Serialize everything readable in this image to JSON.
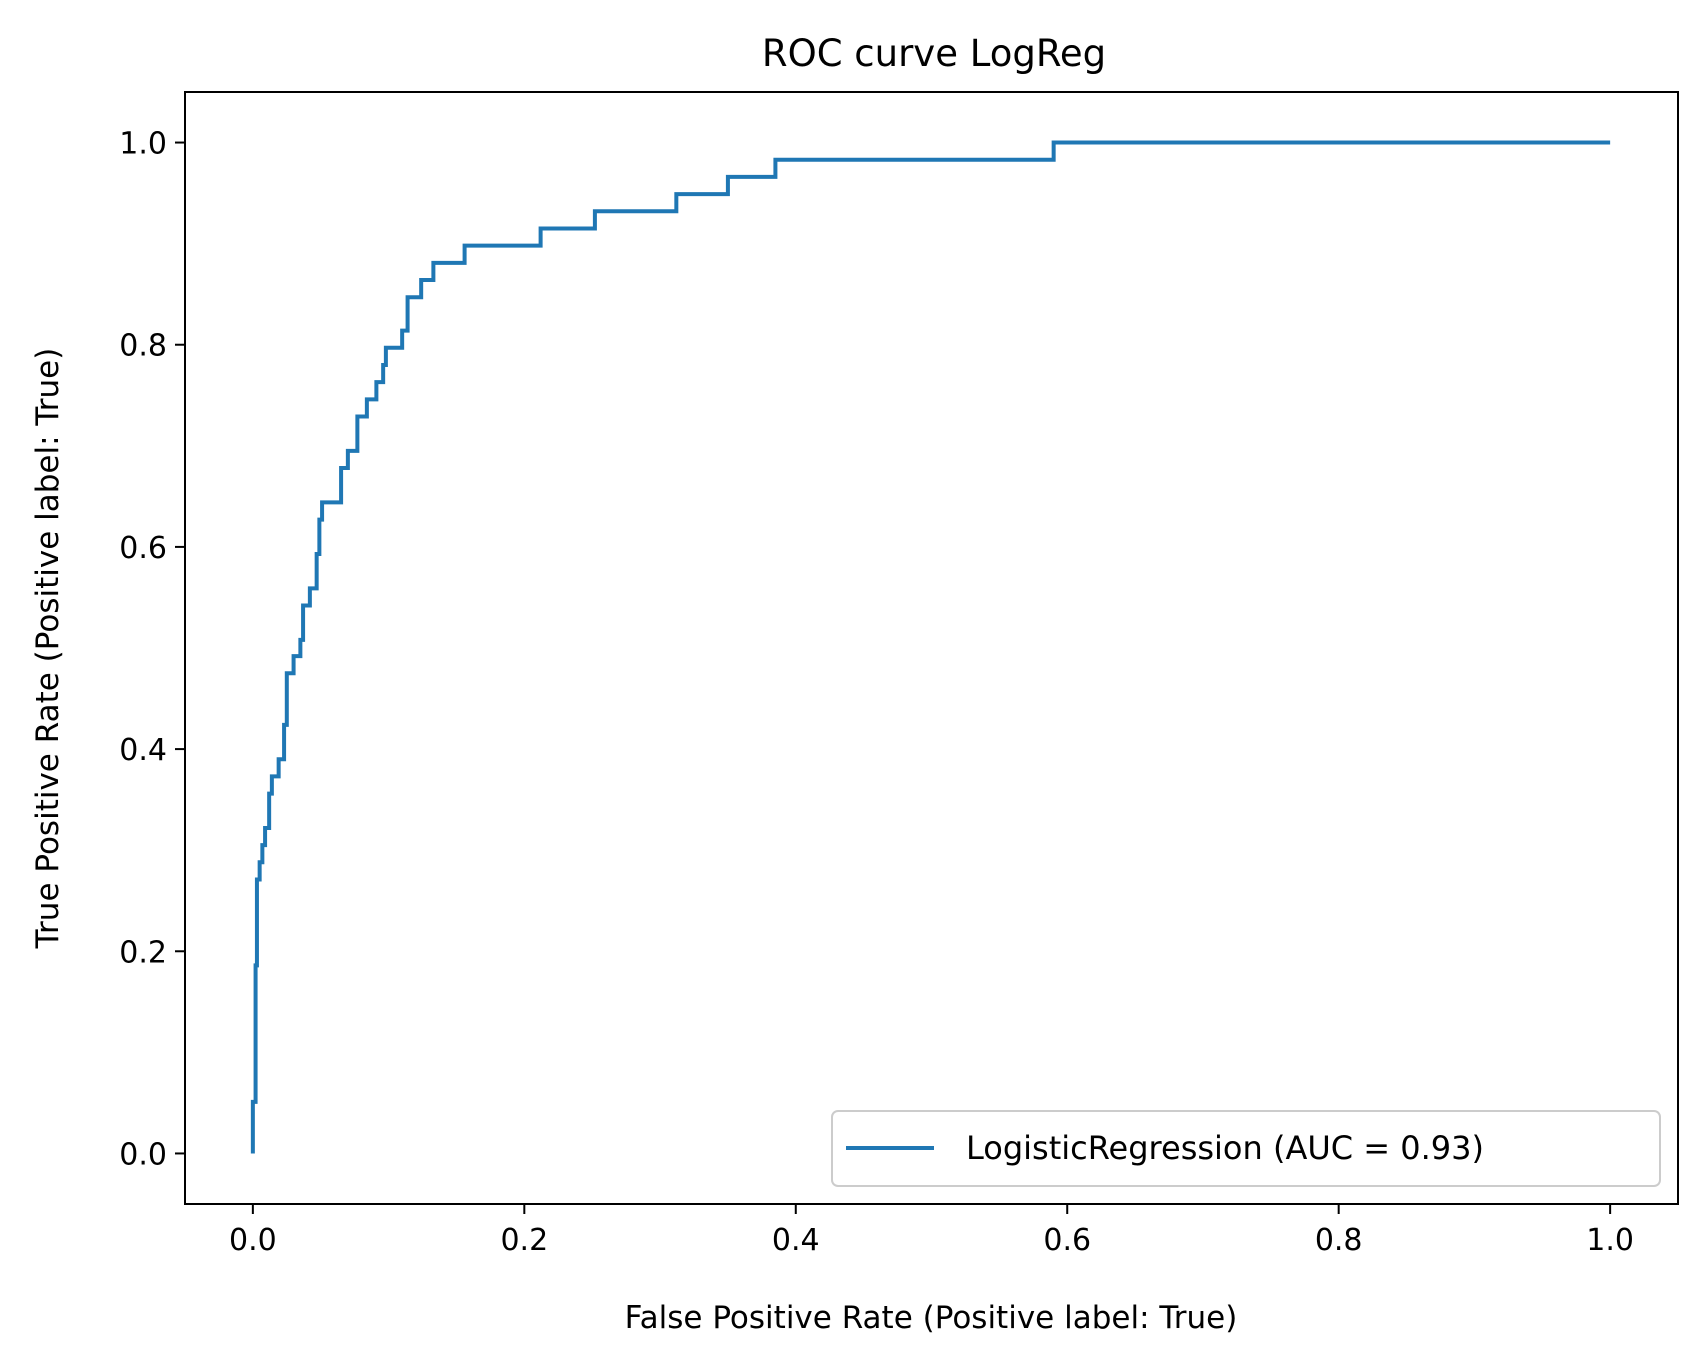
{
  "chart_data": {
    "type": "line",
    "title": "ROC curve LogReg",
    "xlabel": "False Positive Rate (Positive label: True)",
    "ylabel": "True Positive Rate (Positive label: True)",
    "xlim": [
      -0.05,
      1.05
    ],
    "ylim": [
      -0.05,
      1.05
    ],
    "x_ticks": [
      0.0,
      0.2,
      0.4,
      0.6,
      0.8,
      1.0
    ],
    "x_tick_labels": [
      "0.0",
      "0.2",
      "0.4",
      "0.6",
      "0.8",
      "1.0"
    ],
    "y_ticks": [
      0.0,
      0.2,
      0.4,
      0.6,
      0.8,
      1.0
    ],
    "y_tick_labels": [
      "0.0",
      "0.2",
      "0.4",
      "0.6",
      "0.8",
      "1.0"
    ],
    "grid": false,
    "legend_position": "lower-right",
    "series": [
      {
        "name": "LogisticRegression (AUC = 0.93)",
        "color": "#1f77b4",
        "x": [
          0.0,
          0.0,
          0.002,
          0.002,
          0.003,
          0.003,
          0.005,
          0.005,
          0.007,
          0.007,
          0.009,
          0.009,
          0.012,
          0.012,
          0.014,
          0.014,
          0.019,
          0.019,
          0.023,
          0.023,
          0.025,
          0.025,
          0.03,
          0.03,
          0.035,
          0.035,
          0.037,
          0.037,
          0.042,
          0.042,
          0.047,
          0.047,
          0.049,
          0.049,
          0.051,
          0.051,
          0.065,
          0.065,
          0.07,
          0.07,
          0.077,
          0.077,
          0.084,
          0.084,
          0.091,
          0.091,
          0.096,
          0.096,
          0.098,
          0.098,
          0.11,
          0.11,
          0.114,
          0.114,
          0.124,
          0.124,
          0.133,
          0.133,
          0.156,
          0.156,
          0.212,
          0.212,
          0.252,
          0.252,
          0.312,
          0.312,
          0.35,
          0.35,
          0.385,
          0.385,
          0.59,
          0.59,
          1.0
        ],
        "y": [
          0.0,
          0.051,
          0.051,
          0.186,
          0.186,
          0.271,
          0.271,
          0.288,
          0.288,
          0.305,
          0.305,
          0.322,
          0.322,
          0.356,
          0.356,
          0.373,
          0.373,
          0.39,
          0.39,
          0.424,
          0.424,
          0.475,
          0.475,
          0.492,
          0.492,
          0.508,
          0.508,
          0.542,
          0.542,
          0.559,
          0.559,
          0.593,
          0.593,
          0.627,
          0.627,
          0.644,
          0.644,
          0.678,
          0.678,
          0.695,
          0.695,
          0.729,
          0.729,
          0.746,
          0.746,
          0.763,
          0.763,
          0.78,
          0.78,
          0.797,
          0.797,
          0.814,
          0.814,
          0.847,
          0.847,
          0.864,
          0.864,
          0.881,
          0.881,
          0.898,
          0.898,
          0.915,
          0.915,
          0.932,
          0.932,
          0.949,
          0.949,
          0.966,
          0.966,
          0.983,
          0.983,
          1.0,
          1.0
        ]
      }
    ]
  }
}
